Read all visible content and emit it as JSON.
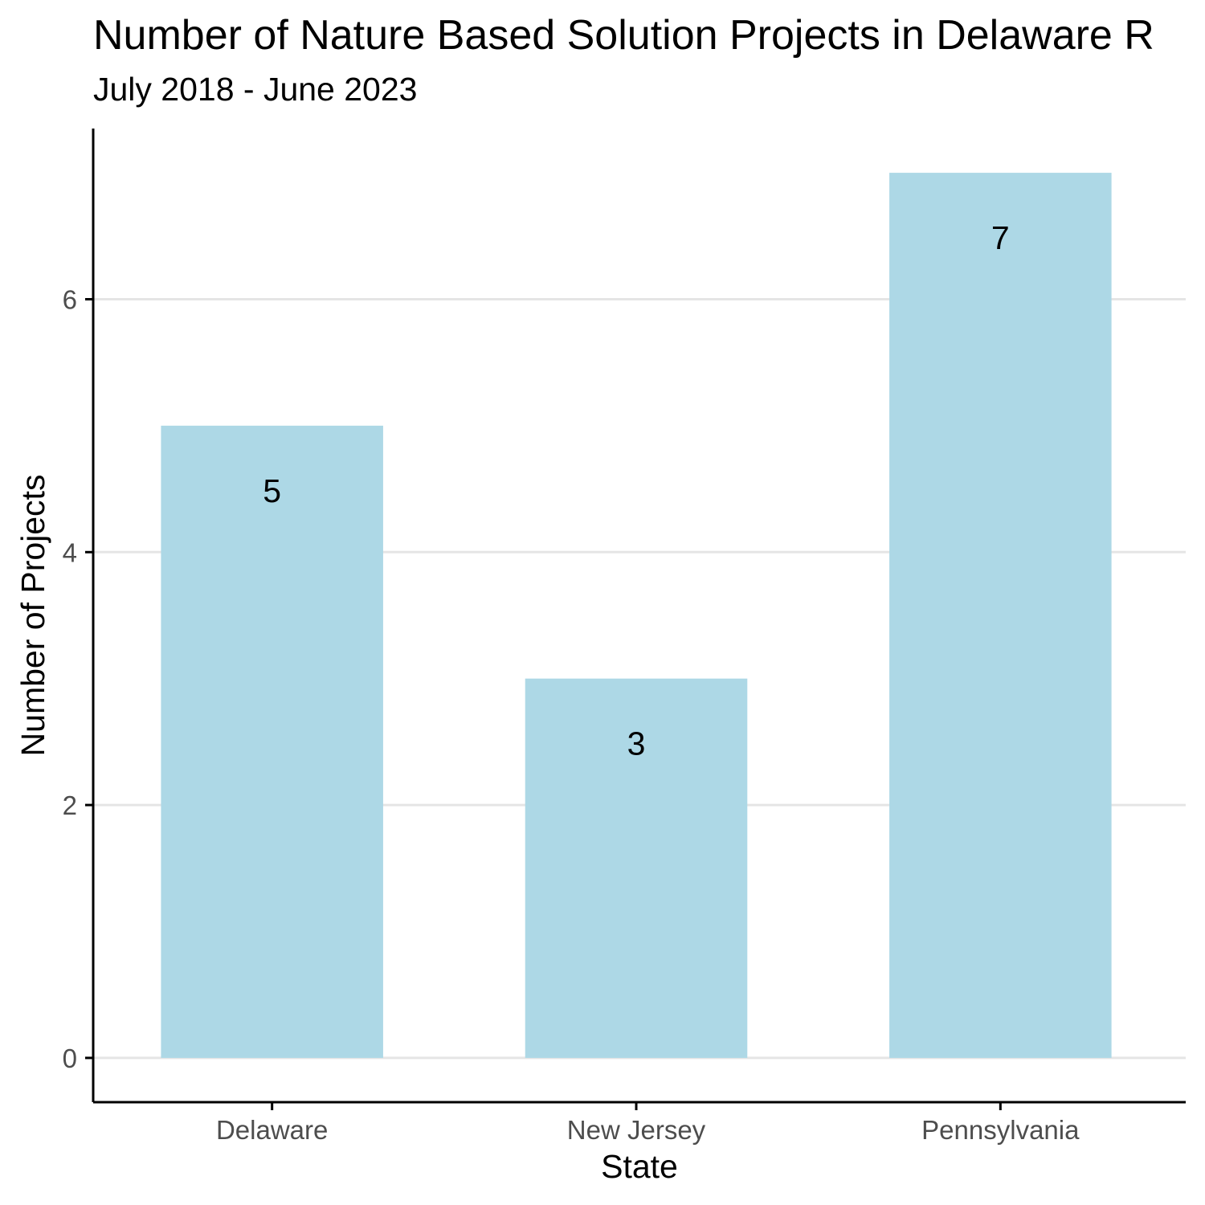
{
  "chart_data": {
    "type": "bar",
    "title": "Number of Nature Based Solution Projects in Delaware R",
    "subtitle": "July 2018 - June 2023",
    "xlabel": "State",
    "ylabel": "Number of Projects",
    "categories": [
      "Delaware",
      "New Jersey",
      "Pennsylvania"
    ],
    "values": [
      5,
      3,
      7
    ],
    "data_labels": [
      "5",
      "3",
      "7"
    ],
    "yticks": [
      0,
      2,
      4,
      6
    ],
    "ytick_labels": [
      "0",
      "2",
      "4",
      "6"
    ],
    "ylim": [
      -0.35,
      7.35
    ],
    "grid": "horizontal major",
    "legend": "none",
    "colors": {
      "bar": "#add8e6",
      "grid": "#e5e5e5",
      "axis": "#000000",
      "tick_label": "#4d4d4d",
      "text": "#000000"
    }
  }
}
